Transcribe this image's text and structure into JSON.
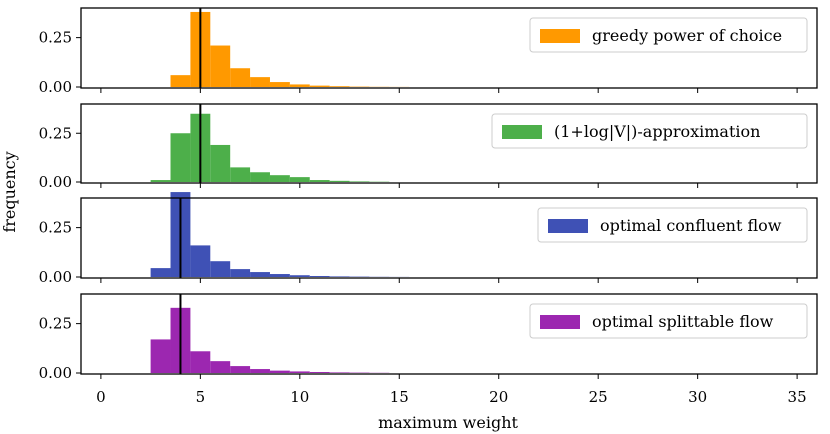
{
  "chart_data": {
    "type": "bar",
    "layout": "stacked-panels-shared-x",
    "xlabel": "maximum weight",
    "ylabel": "frequency",
    "xlim": [
      -1,
      36
    ],
    "x_ticks": [
      0,
      5,
      10,
      15,
      20,
      25,
      30,
      35
    ],
    "y_ticks": [
      0.0,
      0.25
    ],
    "y_tick_labels": [
      "0.00",
      "0.25"
    ],
    "ylim": [
      0,
      0.4
    ],
    "bin_width": 1,
    "panels": [
      {
        "legend": "greedy power of choice",
        "color": "#ff9900",
        "bins": [
          {
            "x": 3.5,
            "v": 0.06
          },
          {
            "x": 4.5,
            "v": 0.38
          },
          {
            "x": 5.5,
            "v": 0.21
          },
          {
            "x": 6.5,
            "v": 0.095
          },
          {
            "x": 7.5,
            "v": 0.05
          },
          {
            "x": 8.5,
            "v": 0.025
          },
          {
            "x": 9.5,
            "v": 0.013
          },
          {
            "x": 10.5,
            "v": 0.007
          },
          {
            "x": 11.5,
            "v": 0.004
          },
          {
            "x": 12.5,
            "v": 0.002
          },
          {
            "x": 13.5,
            "v": 0.001
          },
          {
            "x": 14.5,
            "v": 0.0005
          }
        ],
        "vline": 5
      },
      {
        "legend": "(1+log|V|)-approximation",
        "color": "#4daf4a",
        "bins": [
          {
            "x": 2.5,
            "v": 0.01
          },
          {
            "x": 3.5,
            "v": 0.25
          },
          {
            "x": 4.5,
            "v": 0.35
          },
          {
            "x": 5.5,
            "v": 0.19
          },
          {
            "x": 6.5,
            "v": 0.075
          },
          {
            "x": 7.5,
            "v": 0.05
          },
          {
            "x": 8.5,
            "v": 0.035
          },
          {
            "x": 9.5,
            "v": 0.025
          },
          {
            "x": 10.5,
            "v": 0.01
          },
          {
            "x": 11.5,
            "v": 0.006
          },
          {
            "x": 12.5,
            "v": 0.003
          },
          {
            "x": 13.5,
            "v": 0.0015
          }
        ],
        "vline": 5
      },
      {
        "legend": "optimal confluent flow",
        "color": "#3f51b5",
        "bins": [
          {
            "x": 2.5,
            "v": 0.045
          },
          {
            "x": 3.5,
            "v": 0.43
          },
          {
            "x": 4.5,
            "v": 0.16
          },
          {
            "x": 5.5,
            "v": 0.08
          },
          {
            "x": 6.5,
            "v": 0.04
          },
          {
            "x": 7.5,
            "v": 0.025
          },
          {
            "x": 8.5,
            "v": 0.015
          },
          {
            "x": 9.5,
            "v": 0.009
          },
          {
            "x": 10.5,
            "v": 0.005
          },
          {
            "x": 11.5,
            "v": 0.003
          },
          {
            "x": 12.5,
            "v": 0.002
          },
          {
            "x": 13.5,
            "v": 0.001
          },
          {
            "x": 14.5,
            "v": 0.0005
          }
        ],
        "vline": 4
      },
      {
        "legend": "optimal splittable flow",
        "color": "#9c27b0",
        "bins": [
          {
            "x": 2.5,
            "v": 0.17
          },
          {
            "x": 3.5,
            "v": 0.33
          },
          {
            "x": 4.5,
            "v": 0.11
          },
          {
            "x": 5.5,
            "v": 0.06
          },
          {
            "x": 6.5,
            "v": 0.035
          },
          {
            "x": 7.5,
            "v": 0.02
          },
          {
            "x": 8.5,
            "v": 0.012
          },
          {
            "x": 9.5,
            "v": 0.008
          },
          {
            "x": 10.5,
            "v": 0.005
          },
          {
            "x": 11.5,
            "v": 0.003
          },
          {
            "x": 12.5,
            "v": 0.002
          },
          {
            "x": 13.5,
            "v": 0.001
          }
        ],
        "vline": 4
      }
    ]
  }
}
